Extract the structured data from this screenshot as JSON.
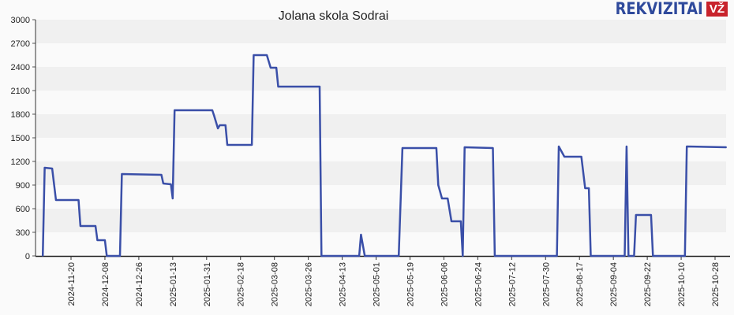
{
  "chart_data": {
    "type": "line",
    "title": "Jolana skola Sodrai",
    "xlabel": "",
    "ylabel": "",
    "ylim": [
      0,
      3000
    ],
    "yticks": [
      0,
      300,
      600,
      900,
      1200,
      1500,
      1800,
      2100,
      2400,
      2700,
      3000
    ],
    "xticks": [
      "2024-11-20",
      "2024-12-08",
      "2024-12-26",
      "2025-01-13",
      "2025-01-31",
      "2025-02-18",
      "2025-03-08",
      "2025-03-26",
      "2025-04-13",
      "2025-05-01",
      "2025-05-19",
      "2025-06-06",
      "2025-06-24",
      "2025-07-12",
      "2025-07-30",
      "2025-08-17",
      "2025-09-04",
      "2025-09-22",
      "2025-10-10",
      "2025-10-28"
    ],
    "grid": "horizontal bands",
    "line_color": "#3a4fa8",
    "series": [
      {
        "points": [
          [
            "2024-11-05",
            0
          ],
          [
            "2024-11-06",
            1120
          ],
          [
            "2024-11-10",
            1110
          ],
          [
            "2024-11-12",
            710
          ],
          [
            "2024-11-24",
            710
          ],
          [
            "2024-11-25",
            380
          ],
          [
            "2024-12-03",
            380
          ],
          [
            "2024-12-04",
            200
          ],
          [
            "2024-12-08",
            200
          ],
          [
            "2024-12-09",
            0
          ],
          [
            "2024-12-16",
            0
          ],
          [
            "2024-12-17",
            1040
          ],
          [
            "2025-01-07",
            1030
          ],
          [
            "2025-01-08",
            920
          ],
          [
            "2025-01-12",
            910
          ],
          [
            "2025-01-13",
            730
          ],
          [
            "2025-01-14",
            1850
          ],
          [
            "2025-02-03",
            1850
          ],
          [
            "2025-02-04",
            1780
          ],
          [
            "2025-02-06",
            1620
          ],
          [
            "2025-02-07",
            1660
          ],
          [
            "2025-02-10",
            1660
          ],
          [
            "2025-02-11",
            1410
          ],
          [
            "2025-02-24",
            1410
          ],
          [
            "2025-02-25",
            2550
          ],
          [
            "2025-03-04",
            2550
          ],
          [
            "2025-03-06",
            2390
          ],
          [
            "2025-03-09",
            2390
          ],
          [
            "2025-03-10",
            2150
          ],
          [
            "2025-04-01",
            2150
          ],
          [
            "2025-04-02",
            0
          ],
          [
            "2025-04-22",
            0
          ],
          [
            "2025-04-23",
            270
          ],
          [
            "2025-04-25",
            0
          ],
          [
            "2025-05-13",
            0
          ],
          [
            "2025-05-15",
            1370
          ],
          [
            "2025-06-02",
            1370
          ],
          [
            "2025-06-03",
            900
          ],
          [
            "2025-06-05",
            730
          ],
          [
            "2025-06-08",
            730
          ],
          [
            "2025-06-10",
            440
          ],
          [
            "2025-06-15",
            440
          ],
          [
            "2025-06-16",
            0
          ],
          [
            "2025-06-17",
            1380
          ],
          [
            "2025-07-02",
            1370
          ],
          [
            "2025-07-03",
            0
          ],
          [
            "2025-08-05",
            0
          ],
          [
            "2025-08-06",
            1390
          ],
          [
            "2025-08-09",
            1260
          ],
          [
            "2025-08-18",
            1260
          ],
          [
            "2025-08-20",
            860
          ],
          [
            "2025-08-22",
            860
          ],
          [
            "2025-08-23",
            0
          ],
          [
            "2025-09-10",
            0
          ],
          [
            "2025-09-11",
            1390
          ],
          [
            "2025-09-12",
            0
          ],
          [
            "2025-09-15",
            0
          ],
          [
            "2025-09-16",
            520
          ],
          [
            "2025-09-24",
            520
          ],
          [
            "2025-09-25",
            0
          ],
          [
            "2025-10-12",
            0
          ],
          [
            "2025-10-13",
            1390
          ],
          [
            "2025-11-03",
            1380
          ]
        ]
      }
    ]
  },
  "logo": {
    "text": "REKVIZITAI",
    "badge": "VŽ"
  }
}
